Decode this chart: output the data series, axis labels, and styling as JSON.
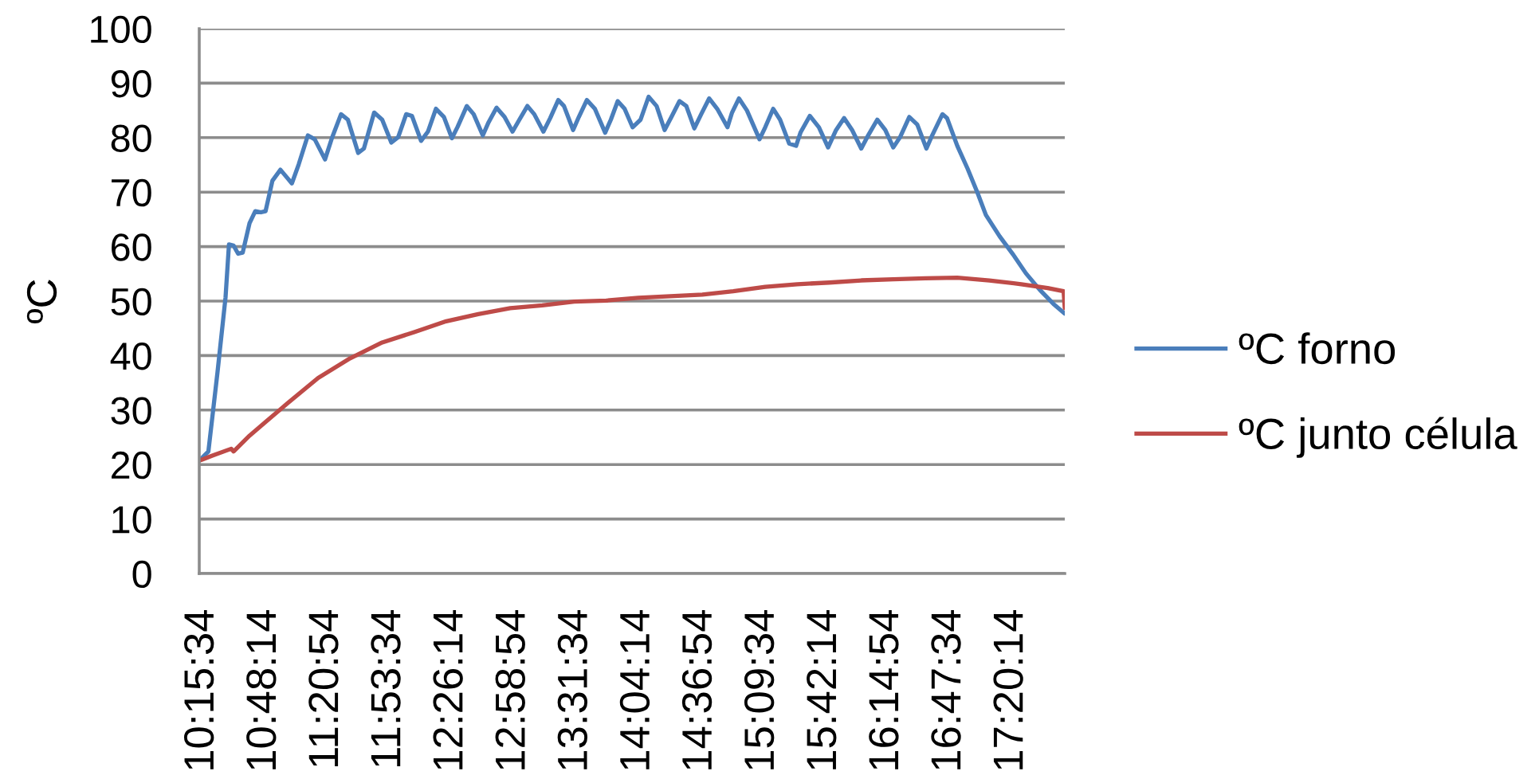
{
  "chart_data": {
    "type": "line",
    "ylabel": "ºC",
    "series": [
      {
        "name": "ºC forno",
        "color": "#4a7ebb",
        "x": [
          10.23,
          10.31,
          10.39,
          10.46,
          10.49,
          10.53,
          10.57,
          10.61,
          10.67,
          10.72,
          10.77,
          10.81,
          10.87,
          10.94,
          11.0,
          11.04,
          11.1,
          11.18,
          11.24,
          11.33,
          11.39,
          11.47,
          11.53,
          11.62,
          11.67,
          11.76,
          11.83,
          11.91,
          11.97,
          12.04,
          12.09,
          12.17,
          12.23,
          12.3,
          12.37,
          12.44,
          12.49,
          12.57,
          12.63,
          12.71,
          12.76,
          12.83,
          12.9,
          12.97,
          13.03,
          13.1,
          13.16,
          13.24,
          13.3,
          13.37,
          13.42,
          13.5,
          13.55,
          13.62,
          13.69,
          13.78,
          13.83,
          13.89,
          13.95,
          14.02,
          14.09,
          14.16,
          14.23,
          14.3,
          14.36,
          14.43,
          14.49,
          14.56,
          14.62,
          14.69,
          14.76,
          14.85,
          14.89,
          14.95,
          15.02,
          15.13,
          15.18,
          15.25,
          15.31,
          15.39,
          15.45,
          15.49,
          15.57,
          15.65,
          15.73,
          15.8,
          15.87,
          15.94,
          16.02,
          16.08,
          16.16,
          16.23,
          16.3,
          16.36,
          16.44,
          16.51,
          16.59,
          16.64,
          16.73,
          16.77,
          16.86,
          16.95,
          17.04,
          17.11,
          17.23,
          17.35,
          17.46,
          17.58,
          17.7,
          17.8
        ],
        "values": [
          20.7,
          22.4,
          37.0,
          50.7,
          60.4,
          60.2,
          58.7,
          58.9,
          64.3,
          66.5,
          66.3,
          66.5,
          72.1,
          74.1,
          72.6,
          71.6,
          75.1,
          80.4,
          79.7,
          76.0,
          79.9,
          84.3,
          83.3,
          77.2,
          78.0,
          84.6,
          83.3,
          79.1,
          80.1,
          84.3,
          84.0,
          79.4,
          81.1,
          85.3,
          83.8,
          79.9,
          82.0,
          85.8,
          84.3,
          80.4,
          82.8,
          85.5,
          83.8,
          81.1,
          83.3,
          85.8,
          84.3,
          81.1,
          83.6,
          86.9,
          85.8,
          81.4,
          83.8,
          86.9,
          85.3,
          80.9,
          83.3,
          86.7,
          85.3,
          81.9,
          83.3,
          87.5,
          85.8,
          81.4,
          83.8,
          86.7,
          85.8,
          81.7,
          84.3,
          87.2,
          85.3,
          81.9,
          84.6,
          87.2,
          85.0,
          79.7,
          81.9,
          85.3,
          83.3,
          78.9,
          78.5,
          81.0,
          84.0,
          81.9,
          78.2,
          81.4,
          83.6,
          81.4,
          78.0,
          80.4,
          83.3,
          81.4,
          78.2,
          80.1,
          83.8,
          82.4,
          78.0,
          80.4,
          84.3,
          83.6,
          78.5,
          74.3,
          69.7,
          65.8,
          61.9,
          58.5,
          55.1,
          52.1,
          49.5,
          47.7
        ]
      },
      {
        "name": "ºC junto célula",
        "color": "#be4b48",
        "x": [
          10.23,
          10.34,
          10.51,
          10.53,
          10.67,
          10.81,
          11.0,
          11.27,
          11.55,
          11.83,
          12.11,
          12.39,
          12.67,
          12.95,
          13.23,
          13.51,
          13.79,
          14.07,
          14.35,
          14.63,
          14.9,
          15.18,
          15.46,
          15.74,
          16.02,
          16.3,
          16.58,
          16.86,
          17.14,
          17.42,
          17.65,
          17.79,
          17.8
        ],
        "values": [
          20.7,
          21.6,
          22.9,
          22.4,
          25.3,
          27.8,
          31.2,
          35.9,
          39.5,
          42.4,
          44.3,
          46.3,
          47.6,
          48.7,
          49.2,
          49.9,
          50.1,
          50.6,
          50.9,
          51.2,
          51.8,
          52.6,
          53.1,
          53.4,
          53.8,
          54.0,
          54.2,
          54.3,
          53.8,
          53.1,
          52.4,
          51.8,
          48.7
        ]
      }
    ],
    "xlim": [
      10.23,
      17.8
    ],
    "xticks": [
      {
        "value": 10.2594,
        "label": "10:15:34"
      },
      {
        "value": 10.8039,
        "label": "10:48:14"
      },
      {
        "value": 11.3483,
        "label": "11:20:54"
      },
      {
        "value": 11.8928,
        "label": "11:53:34"
      },
      {
        "value": 12.4372,
        "label": "12:26:14"
      },
      {
        "value": 12.9817,
        "label": "12:58:54"
      },
      {
        "value": 13.5261,
        "label": "13:31:34"
      },
      {
        "value": 14.0706,
        "label": "14:04:14"
      },
      {
        "value": 14.615,
        "label": "14:36:54"
      },
      {
        "value": 15.1594,
        "label": "15:09:34"
      },
      {
        "value": 15.7039,
        "label": "15:42:14"
      },
      {
        "value": 16.2483,
        "label": "16:14:54"
      },
      {
        "value": 16.7928,
        "label": "16:47:34"
      },
      {
        "value": 17.3372,
        "label": "17:20:14"
      }
    ],
    "ylim": [
      0,
      100
    ],
    "yticks": [
      0,
      10,
      20,
      30,
      40,
      50,
      60,
      70,
      80,
      90,
      100
    ],
    "grid": "y",
    "legend": "right",
    "line_style": "solid"
  }
}
